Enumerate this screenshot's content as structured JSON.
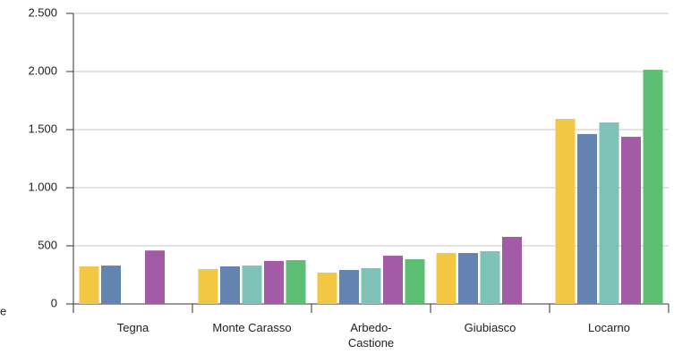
{
  "chart_data": {
    "type": "bar",
    "categories": [
      "Tegna",
      "Monte Carasso",
      "Arbedo-\nCastione",
      "Giubiasco",
      "Locarno"
    ],
    "series": [
      {
        "color": "#f2c744",
        "values": [
          323,
          300,
          270,
          438,
          1592
        ]
      },
      {
        "color": "#6384b0",
        "values": [
          330,
          323,
          292,
          438,
          1462
        ]
      },
      {
        "color": "#7fc2b7",
        "values": [
          null,
          330,
          308,
          454,
          1562
        ]
      },
      {
        "color": "#a45ba6",
        "values": [
          460,
          370,
          415,
          577,
          1438
        ]
      },
      {
        "color": "#5dbf74",
        "values": [
          null,
          377,
          385,
          null,
          2015
        ]
      }
    ],
    "ylim": [
      0,
      2500
    ],
    "yticks": [
      0,
      500,
      {
        "value": 1000,
        "label": "1.000"
      },
      {
        "value": 1500,
        "label": "1.500"
      },
      {
        "value": 2000,
        "label": "2.000"
      },
      {
        "value": 2500,
        "label": "2.500"
      }
    ],
    "grid": true,
    "annotation": "e"
  }
}
